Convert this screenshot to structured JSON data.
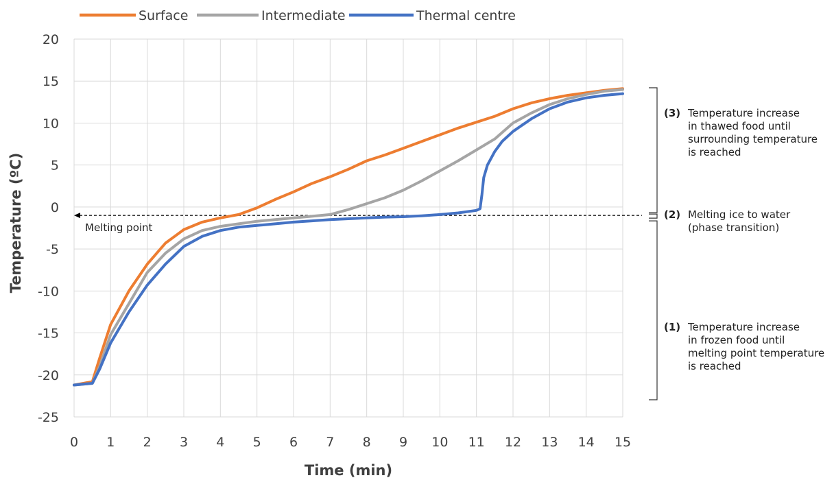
{
  "chart_data": {
    "type": "line",
    "xlabel": "Time (min)",
    "ylabel": "Temperature (ºC)",
    "xlim": [
      0,
      15
    ],
    "ylim": [
      -25,
      20
    ],
    "x_ticks": [
      0,
      1,
      2,
      3,
      4,
      5,
      6,
      7,
      8,
      9,
      10,
      11,
      12,
      13,
      14,
      15
    ],
    "y_ticks": [
      20,
      15,
      10,
      5,
      0,
      -5,
      -10,
      -15,
      -20,
      -25
    ],
    "grid": true,
    "legend_position": "top",
    "series": [
      {
        "name": "Surface",
        "color": "#ED7D31",
        "x": [
          0,
          0.5,
          0.7,
          1,
          1.5,
          2,
          2.5,
          3,
          3.5,
          4,
          4.5,
          5,
          5.5,
          6,
          6.5,
          7,
          7.5,
          8,
          8.5,
          9,
          9.5,
          10,
          10.5,
          11,
          11.5,
          12,
          12.5,
          13,
          13.5,
          14,
          14.5,
          15
        ],
        "y": [
          -21.2,
          -20.8,
          -18,
          -14,
          -10,
          -6.8,
          -4.3,
          -2.7,
          -1.8,
          -1.3,
          -0.9,
          -0.1,
          0.9,
          1.8,
          2.8,
          3.6,
          4.5,
          5.5,
          6.2,
          7,
          7.8,
          8.6,
          9.4,
          10.1,
          10.8,
          11.7,
          12.4,
          12.9,
          13.3,
          13.6,
          13.9,
          14.1
        ]
      },
      {
        "name": "Intermediate",
        "color": "#A5A5A5",
        "x": [
          0,
          0.5,
          0.7,
          1,
          1.5,
          2,
          2.5,
          3,
          3.5,
          4,
          4.5,
          5,
          5.5,
          6,
          6.5,
          7,
          7.5,
          8,
          8.5,
          9,
          9.5,
          10,
          10.5,
          11,
          11.5,
          12,
          12.5,
          13,
          13.5,
          14,
          14.5,
          15
        ],
        "y": [
          -21.2,
          -21,
          -19,
          -15.2,
          -11.5,
          -7.8,
          -5.5,
          -3.8,
          -2.8,
          -2.3,
          -2,
          -1.7,
          -1.5,
          -1.3,
          -1.1,
          -0.9,
          -0.3,
          0.4,
          1.1,
          2,
          3.1,
          4.3,
          5.5,
          6.8,
          8.1,
          10,
          11.2,
          12.2,
          12.9,
          13.4,
          13.8,
          14
        ]
      },
      {
        "name": "Thermal centre",
        "color": "#4472C4",
        "x": [
          0,
          0.5,
          0.7,
          1,
          1.5,
          2,
          2.5,
          3,
          3.5,
          4,
          4.5,
          5,
          5.5,
          6,
          6.5,
          7,
          7.5,
          8,
          8.5,
          9,
          9.5,
          10,
          10.5,
          11,
          11.1,
          11.15,
          11.2,
          11.3,
          11.5,
          11.7,
          12,
          12.5,
          13,
          13.5,
          14,
          14.5,
          15
        ],
        "y": [
          -21.2,
          -21,
          -19.3,
          -16.2,
          -12.5,
          -9.3,
          -6.8,
          -4.7,
          -3.5,
          -2.8,
          -2.4,
          -2.2,
          -2,
          -1.8,
          -1.65,
          -1.5,
          -1.4,
          -1.3,
          -1.2,
          -1.15,
          -1.05,
          -0.9,
          -0.7,
          -0.4,
          -0.2,
          1.5,
          3.5,
          5,
          6.6,
          7.8,
          9,
          10.5,
          11.7,
          12.5,
          13,
          13.3,
          13.5
        ]
      }
    ],
    "reference_line": {
      "label": "Melting point",
      "y": -1,
      "style": "dashed-arrow"
    },
    "annotations": [
      {
        "num": "(3)",
        "lines": [
          "Temperature increase",
          "in thawed food until",
          "surrounding temperature",
          "is reached"
        ],
        "y_range": [
          -1,
          14.5
        ]
      },
      {
        "num": "(2)",
        "lines": [
          "Melting ice to water",
          "(phase transition)"
        ],
        "y_range": [
          -1.5,
          -1
        ]
      },
      {
        "num": "(1)",
        "lines": [
          "Temperature increase",
          "in frozen food until",
          "melting point temperature",
          "is reached"
        ],
        "y_range": [
          -25,
          -1.5
        ]
      }
    ]
  }
}
